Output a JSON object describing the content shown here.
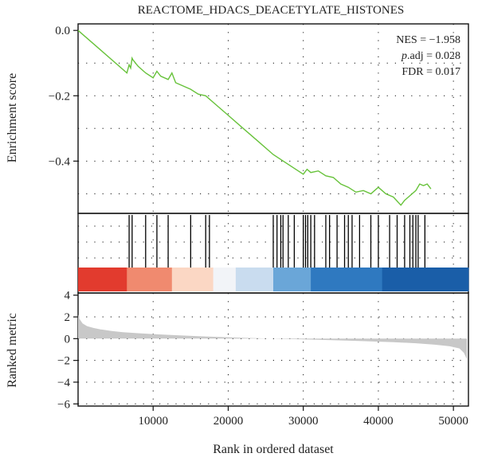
{
  "chart_data": {
    "type": "line",
    "title": "REACTOME_HDACS_DEACETYLATE_HISTONES",
    "annotations": {
      "nes": "NES = −1.958",
      "padj_prefix": "p",
      "padj_suffix": ".adj = 0.028",
      "fdr": "FDR = 0.017"
    },
    "xlabel": "Rank in ordered dataset",
    "xlim": [
      0,
      52000
    ],
    "x_ticks": [
      10000,
      20000,
      30000,
      40000,
      50000
    ],
    "x_tick_labels": [
      "10000",
      "20000",
      "30000",
      "40000",
      "50000"
    ],
    "enrichment": {
      "ylabel": "Enrichment score",
      "ylim": [
        -0.56,
        0.02
      ],
      "y_ticks": [
        0.0,
        -0.2,
        -0.4
      ],
      "y_tick_labels": [
        "0.0",
        "−0.2",
        "−0.4"
      ],
      "grid": true,
      "color": "#67c23a",
      "x": [
        0,
        3000,
        6500,
        6800,
        7000,
        7200,
        7300,
        8000,
        9000,
        10000,
        10500,
        11000,
        12000,
        12500,
        13000,
        15000,
        16000,
        17000,
        18000,
        20000,
        22000,
        24000,
        26000,
        28000,
        30000,
        30500,
        31000,
        32000,
        33000,
        34000,
        35000,
        36000,
        37000,
        38000,
        39000,
        40000,
        40500,
        41000,
        42000,
        43000,
        43500,
        44000,
        45000,
        45500,
        46000,
        46500,
        47000
      ],
      "y": [
        0.0,
        -0.06,
        -0.13,
        -0.105,
        -0.115,
        -0.085,
        -0.09,
        -0.11,
        -0.13,
        -0.145,
        -0.125,
        -0.14,
        -0.15,
        -0.13,
        -0.16,
        -0.18,
        -0.195,
        -0.2,
        -0.22,
        -0.26,
        -0.3,
        -0.34,
        -0.38,
        -0.41,
        -0.44,
        -0.425,
        -0.435,
        -0.43,
        -0.445,
        -0.45,
        -0.47,
        -0.48,
        -0.495,
        -0.49,
        -0.5,
        -0.48,
        -0.49,
        -0.5,
        -0.51,
        -0.535,
        -0.52,
        -0.51,
        -0.49,
        -0.47,
        -0.475,
        -0.47,
        -0.485
      ]
    },
    "hits": {
      "positions": [
        6800,
        7200,
        9000,
        10500,
        12000,
        15000,
        17000,
        17500,
        26000,
        26500,
        27000,
        27300,
        28000,
        28800,
        30000,
        30300,
        30600,
        31000,
        31500,
        33000,
        33500,
        34500,
        35500,
        36000,
        36500,
        37500,
        39000,
        40000,
        41500,
        42500,
        43500,
        44200,
        44600,
        45000,
        45300,
        46200
      ]
    },
    "color_band": {
      "colors": [
        "#e23b2e",
        "#f08a6f",
        "#fbd7c4",
        "#f2f4f8",
        "#c9dcef",
        "#6aa6d8",
        "#2f79c0",
        "#1a5ea8"
      ],
      "breaks": [
        0,
        6500,
        12500,
        18000,
        21000,
        26000,
        31000,
        40500,
        52000
      ]
    },
    "ranked_metric": {
      "ylabel": "Ranked metric",
      "ylim": [
        -6.2,
        4.2
      ],
      "y_ticks": [
        4,
        2,
        0,
        -2,
        -4,
        -6
      ],
      "y_tick_labels": [
        "4",
        "2",
        "0",
        "−2",
        "−4",
        "−6"
      ],
      "fill": "#c8c8c8",
      "x": [
        0,
        200,
        600,
        1200,
        2000,
        3000,
        4500,
        6000,
        8000,
        10000,
        13000,
        17000,
        22000,
        27000,
        32000,
        37000,
        42000,
        45000,
        47500,
        49500,
        50800,
        51400,
        51800
      ],
      "y": [
        2.2,
        1.8,
        1.4,
        1.15,
        1.0,
        0.85,
        0.7,
        0.6,
        0.5,
        0.42,
        0.32,
        0.2,
        0.08,
        -0.02,
        -0.1,
        -0.2,
        -0.32,
        -0.42,
        -0.55,
        -0.7,
        -0.9,
        -1.3,
        -1.9
      ]
    }
  }
}
